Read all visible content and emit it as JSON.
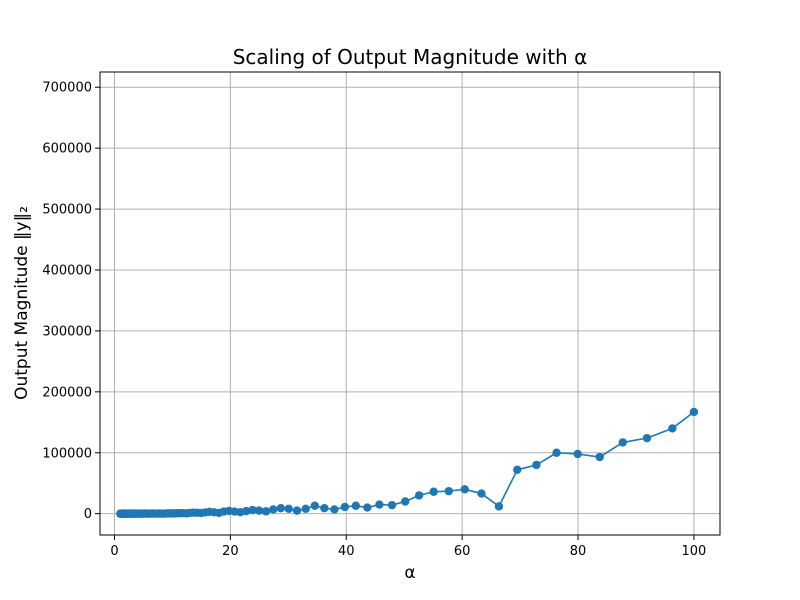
{
  "chart_data": {
    "type": "line",
    "title": "Scaling of Output Magnitude with α",
    "xlabel": "α",
    "ylabel": "Output Magnitude ‖y‖₂",
    "xlim": [
      -2.5,
      104.5
    ],
    "ylim": [
      -35000,
      725000
    ],
    "xticks": [
      0,
      20,
      40,
      60,
      80,
      100
    ],
    "yticks": [
      0,
      100000,
      200000,
      300000,
      400000,
      500000,
      600000,
      700000
    ],
    "grid": true,
    "color": "#1f77b4",
    "marker": "circle",
    "series": [
      {
        "x": [
          1.0,
          1.05,
          1.1,
          1.15,
          1.2,
          1.26,
          1.32,
          1.38,
          1.45,
          1.52,
          1.59,
          1.67,
          1.75,
          1.83,
          1.92,
          2.01,
          2.11,
          2.21,
          2.31,
          2.42,
          2.54,
          2.66,
          2.79,
          2.92,
          3.06,
          3.21,
          3.36,
          3.52,
          3.69,
          3.87,
          4.06,
          4.25,
          4.45,
          4.67,
          4.89,
          5.12,
          5.37,
          5.62,
          5.89,
          6.17,
          6.47,
          6.78,
          7.1,
          7.44,
          7.79,
          8.16,
          8.55,
          8.96,
          9.39,
          9.84,
          10.31,
          10.8,
          11.31,
          11.85,
          12.42,
          13.01,
          13.63,
          14.28,
          14.96,
          15.67,
          16.42,
          17.2,
          18.02,
          18.88,
          19.78,
          20.72,
          21.71,
          22.74,
          23.83,
          24.96,
          26.15,
          27.4,
          28.7,
          30.07,
          31.5,
          33.0,
          34.58,
          36.22,
          37.95,
          39.76,
          41.65,
          43.64,
          45.72,
          47.9,
          50.18,
          52.57,
          55.08,
          57.7,
          60.45,
          63.33,
          66.35,
          69.51,
          72.82,
          76.29,
          79.93,
          83.74,
          87.72,
          91.9,
          96.28,
          100.0
        ],
        "y": [
          0,
          0,
          0,
          200,
          0,
          0,
          200,
          0,
          0,
          0,
          0,
          300,
          0,
          0,
          0,
          0,
          200,
          0,
          0,
          0,
          300,
          0,
          0,
          0,
          400,
          0,
          0,
          200,
          0,
          0,
          300,
          0,
          0,
          0,
          0,
          200,
          300,
          0,
          0,
          0,
          300,
          0,
          0,
          200,
          300,
          0,
          0,
          300,
          500,
          500,
          300,
          700,
          900,
          800,
          500,
          1200,
          1600,
          1400,
          1000,
          2000,
          3000,
          2200,
          1300,
          3500,
          4500,
          3500,
          2400,
          4200,
          6000,
          5000,
          3800,
          7000,
          9000,
          8000,
          5000,
          8000,
          13000,
          9000,
          7000,
          11000,
          13000,
          10000,
          15000,
          14000,
          20000,
          30000,
          36000,
          37000,
          40000,
          33000,
          12000,
          72000,
          80000,
          100000,
          98000,
          93000,
          117000,
          124000,
          140000,
          167000
        ],
        "name": ""
      }
    ]
  }
}
